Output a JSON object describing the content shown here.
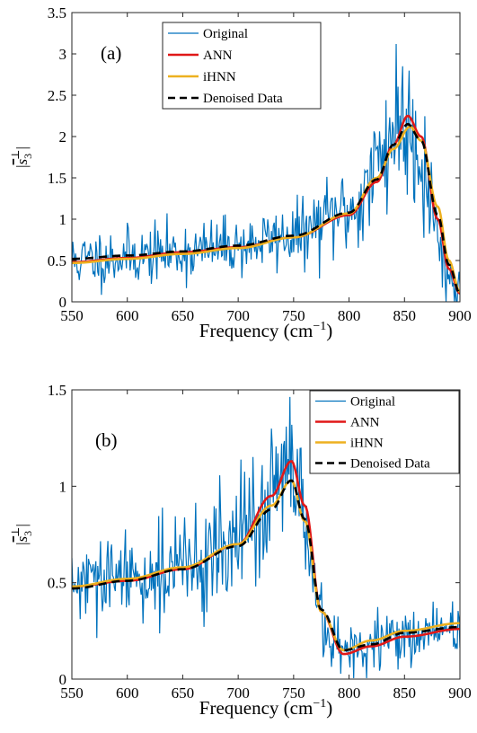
{
  "chart_data": [
    {
      "type": "line",
      "panel_label": "(a)",
      "xlabel": "Frequency",
      "xunit_base": "cm",
      "xunit_exp": "−1",
      "ylabel_base": "s",
      "ylabel_sup": "⊥",
      "ylabel_sub": "3",
      "xlim": [
        550,
        900
      ],
      "ylim": [
        0,
        3.5
      ],
      "xticks": [
        "550",
        "600",
        "650",
        "700",
        "750",
        "800",
        "850",
        "900"
      ],
      "yticks": [
        "0",
        "0.5",
        "1",
        "1.5",
        "2",
        "2.5",
        "3",
        "3.5"
      ],
      "legend_position": "top-center",
      "legend": [
        "Original",
        "ANN",
        "iHNN",
        "Denoised Data"
      ],
      "peak": {
        "x0": 853,
        "gamma": 40,
        "asym": 0.45,
        "tail_base": 0.22,
        "tail_slope_per_freq": 0.0002
      },
      "series": [
        {
          "name": "Original",
          "color": "#0072BD",
          "style": "noise",
          "noise_seed": 11,
          "noise_sd_factor": 0.45,
          "noise_min_sd": 0.32,
          "x": [
            550,
            600,
            650,
            700,
            750,
            800,
            850,
            900
          ],
          "y": [
            0.5,
            0.55,
            0.6,
            0.68,
            0.8,
            1.1,
            2.2,
            0.1
          ]
        },
        {
          "name": "ANN",
          "color": "#E01818",
          "style": "solid",
          "x": [
            550,
            600,
            650,
            700,
            750,
            800,
            825,
            840,
            853,
            865,
            880,
            890,
            900
          ],
          "y": [
            0.48,
            0.53,
            0.6,
            0.66,
            0.78,
            1.05,
            1.45,
            1.9,
            2.25,
            2.0,
            1.0,
            0.4,
            0.1
          ]
        },
        {
          "name": "iHNN",
          "color": "#EDB120",
          "style": "solid",
          "x": [
            550,
            600,
            650,
            700,
            750,
            800,
            825,
            840,
            855,
            865,
            880,
            890,
            900
          ],
          "y": [
            0.47,
            0.52,
            0.58,
            0.65,
            0.78,
            1.07,
            1.5,
            1.85,
            2.12,
            1.95,
            1.15,
            0.5,
            0.12
          ]
        },
        {
          "name": "Denoised Data",
          "color": "#000000",
          "style": "dashed",
          "x": [
            550,
            600,
            650,
            700,
            750,
            800,
            825,
            840,
            853,
            865,
            880,
            890,
            900
          ],
          "y": [
            0.52,
            0.56,
            0.61,
            0.68,
            0.8,
            1.08,
            1.48,
            1.9,
            2.15,
            1.95,
            1.05,
            0.45,
            0.1
          ]
        }
      ]
    },
    {
      "type": "line",
      "panel_label": "(b)",
      "xlabel": "Frequency",
      "xunit_base": "cm",
      "xunit_exp": "−1",
      "ylabel_base": "s",
      "ylabel_sup": "⊥",
      "ylabel_sub": "3",
      "xlim": [
        550,
        900
      ],
      "ylim": [
        0,
        1.5
      ],
      "xticks": [
        "550",
        "600",
        "650",
        "700",
        "750",
        "800",
        "850",
        "900"
      ],
      "yticks": [
        "0",
        "0.5",
        "1",
        "1.5"
      ],
      "legend_position": "top-right",
      "legend": [
        "Original",
        "ANN",
        "iHNN",
        "Denoised Data"
      ],
      "series": [
        {
          "name": "Original",
          "color": "#0072BD",
          "style": "noise",
          "noise_seed": 29,
          "noise_sd_factor": 0.4,
          "noise_min_sd": 0.14,
          "x": [
            550,
            600,
            650,
            700,
            740,
            750,
            765,
            780,
            800,
            850,
            900
          ],
          "y": [
            0.48,
            0.52,
            0.58,
            0.72,
            1.0,
            1.05,
            0.6,
            0.2,
            0.14,
            0.22,
            0.27
          ]
        },
        {
          "name": "ANN",
          "color": "#E01818",
          "style": "solid",
          "x": [
            550,
            600,
            650,
            700,
            730,
            748,
            760,
            775,
            795,
            820,
            850,
            900
          ],
          "y": [
            0.48,
            0.51,
            0.57,
            0.7,
            0.95,
            1.13,
            0.9,
            0.35,
            0.13,
            0.17,
            0.22,
            0.26
          ]
        },
        {
          "name": "iHNN",
          "color": "#EDB120",
          "style": "solid",
          "x": [
            550,
            600,
            650,
            700,
            730,
            748,
            760,
            775,
            795,
            820,
            850,
            900
          ],
          "y": [
            0.48,
            0.52,
            0.58,
            0.7,
            0.9,
            1.03,
            0.82,
            0.35,
            0.15,
            0.2,
            0.25,
            0.29
          ]
        },
        {
          "name": "Denoised Data",
          "color": "#000000",
          "style": "dashed",
          "x": [
            550,
            600,
            650,
            700,
            730,
            748,
            760,
            775,
            795,
            820,
            850,
            900
          ],
          "y": [
            0.47,
            0.51,
            0.57,
            0.69,
            0.88,
            1.03,
            0.83,
            0.36,
            0.15,
            0.18,
            0.24,
            0.27
          ]
        }
      ]
    }
  ]
}
